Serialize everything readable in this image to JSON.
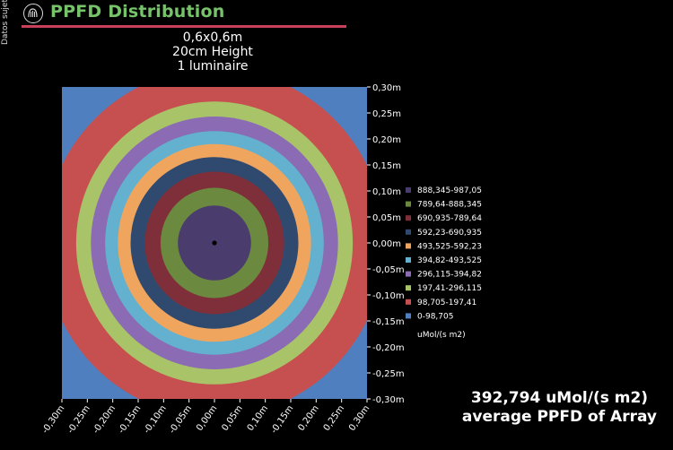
{
  "side_note": "Datos sujeto",
  "header": {
    "title": "PPFD Distribution",
    "subtitle_lines": [
      "0,6x0,6m",
      "20cm Height",
      "1 luminaire"
    ]
  },
  "summary": {
    "value": "392,794 uMol/(s m2)",
    "label": "average PPFD of Array"
  },
  "chart_data": {
    "type": "heatmap",
    "title": "PPFD Distribution",
    "x_ticks": [
      "-0,30m",
      "-0,25m",
      "-0,20m",
      "-0,15m",
      "-0,10m",
      "-0,05m",
      "0,00m",
      "0,05m",
      "0,10m",
      "-0,15m",
      "0,20m",
      "0,25m",
      "0,30m"
    ],
    "y_ticks": [
      "0,30m",
      "0,25m",
      "0,20m",
      "0,15m",
      "0,10m",
      "0,05m",
      "0,00m",
      "-0,05m",
      "-0,10m",
      "-0,15m",
      "-0,20m",
      "-0,25m",
      "-0,30m"
    ],
    "xlim": [
      -0.3,
      0.3
    ],
    "ylim": [
      -0.3,
      0.3
    ],
    "grid": false,
    "legend_position": "right",
    "legend_unit": "uMol/(s m2)",
    "bins": [
      {
        "label": "888,345-987,05",
        "color": "#4a3d6e"
      },
      {
        "label": "789,64-888,345",
        "color": "#6c8a3f"
      },
      {
        "label": "690,935-789,64",
        "color": "#7f2f3a"
      },
      {
        "label": "592,23-690,935",
        "color": "#2f4a6e"
      },
      {
        "label": "493,525-592,23",
        "color": "#f0a55f"
      },
      {
        "label": "394,82-493,525",
        "color": "#63b1cf"
      },
      {
        "label": "296,115-394,82",
        "color": "#8a6bb4"
      },
      {
        "label": "197,41-296,115",
        "color": "#a9c368"
      },
      {
        "label": "98,705-197,41",
        "color": "#c65050"
      },
      {
        "label": "0-98,705",
        "color": "#4f7fbf"
      }
    ],
    "contour_radii_m": [
      0.072,
      0.106,
      0.137,
      0.165,
      0.19,
      0.215,
      0.243,
      0.272,
      0.335
    ],
    "center_marker": [
      0,
      0
    ]
  }
}
